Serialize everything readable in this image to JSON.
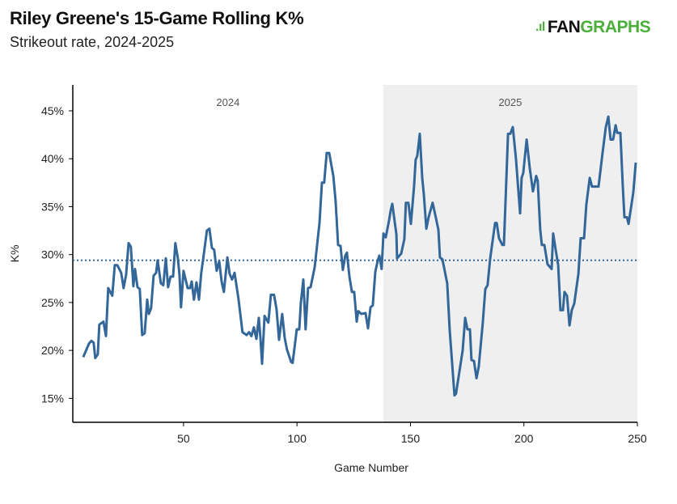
{
  "chart_data": {
    "type": "line",
    "title": "Riley Greene's 15-Game Rolling K%",
    "subtitle": "Strikeout rate, 2024-2025",
    "xlabel": "Game Number",
    "ylabel": "K%",
    "xlim": [
      1.2,
      250
    ],
    "ylim": [
      12.5,
      47.7
    ],
    "xticks": [
      50,
      100,
      150,
      200,
      250
    ],
    "yticks": [
      15,
      20,
      25,
      30,
      35,
      40,
      45
    ],
    "ytick_labels": [
      "15%",
      "20%",
      "25%",
      "30%",
      "35%",
      "40%",
      "45%"
    ],
    "grid": false,
    "season_regions": [
      {
        "label": "2024",
        "start": 1.2,
        "end": 138,
        "shaded": false
      },
      {
        "label": "2025",
        "start": 138,
        "end": 250,
        "shaded": true
      }
    ],
    "reference_line": {
      "value": 29.4,
      "style": "dotted"
    },
    "series": [
      {
        "name": "15-Game Rolling K%",
        "color": "#336699",
        "points": [
          [
            5.8,
            19.3
          ],
          [
            8.3,
            20.7
          ],
          [
            9.4,
            21.0
          ],
          [
            10.4,
            20.8
          ],
          [
            11.1,
            19.2
          ],
          [
            12.2,
            19.6
          ],
          [
            12.9,
            22.7
          ],
          [
            14.7,
            23.0
          ],
          [
            15.8,
            21.5
          ],
          [
            16.8,
            26.5
          ],
          [
            18.6,
            25.7
          ],
          [
            19.7,
            28.9
          ],
          [
            20.8,
            28.9
          ],
          [
            22.5,
            28.1
          ],
          [
            23.6,
            26.5
          ],
          [
            24.7,
            27.9
          ],
          [
            25.8,
            31.2
          ],
          [
            26.8,
            30.8
          ],
          [
            27.9,
            26.7
          ],
          [
            28.6,
            28.5
          ],
          [
            29.7,
            26.6
          ],
          [
            30.7,
            26.4
          ],
          [
            31.8,
            21.6
          ],
          [
            32.9,
            21.8
          ],
          [
            34.0,
            25.3
          ],
          [
            34.7,
            23.8
          ],
          [
            35.7,
            24.4
          ],
          [
            36.8,
            27.8
          ],
          [
            37.9,
            28.1
          ],
          [
            38.6,
            29.4
          ],
          [
            40.0,
            27.0
          ],
          [
            41.1,
            26.8
          ],
          [
            42.2,
            29.6
          ],
          [
            43.2,
            26.6
          ],
          [
            44.3,
            27.7
          ],
          [
            45.4,
            27.7
          ],
          [
            46.4,
            31.2
          ],
          [
            47.5,
            29.6
          ],
          [
            48.2,
            27.9
          ],
          [
            48.9,
            24.5
          ],
          [
            50.0,
            28.3
          ],
          [
            50.7,
            27.6
          ],
          [
            51.8,
            26.5
          ],
          [
            52.9,
            26.5
          ],
          [
            53.6,
            27.2
          ],
          [
            54.6,
            25.3
          ],
          [
            55.7,
            27.1
          ],
          [
            56.8,
            25.3
          ],
          [
            57.8,
            28.1
          ],
          [
            58.6,
            29.4
          ],
          [
            60.3,
            32.5
          ],
          [
            61.4,
            32.7
          ],
          [
            62.5,
            30.7
          ],
          [
            63.5,
            30.5
          ],
          [
            64.6,
            28.3
          ],
          [
            65.7,
            29.3
          ],
          [
            66.8,
            27.2
          ],
          [
            67.8,
            26.1
          ],
          [
            69.3,
            29.7
          ],
          [
            70.3,
            28.0
          ],
          [
            71.4,
            27.4
          ],
          [
            72.5,
            28.1
          ],
          [
            74.2,
            25.4
          ],
          [
            76.0,
            21.9
          ],
          [
            77.8,
            21.6
          ],
          [
            78.9,
            21.9
          ],
          [
            79.9,
            21.5
          ],
          [
            81.0,
            22.4
          ],
          [
            82.1,
            21.2
          ],
          [
            83.2,
            23.4
          ],
          [
            83.9,
            21.3
          ],
          [
            84.6,
            18.6
          ],
          [
            85.7,
            23.6
          ],
          [
            87.4,
            22.9
          ],
          [
            88.5,
            25.8
          ],
          [
            89.9,
            25.8
          ],
          [
            91.0,
            24.3
          ],
          [
            92.1,
            21.1
          ],
          [
            93.5,
            23.8
          ],
          [
            94.6,
            21.3
          ],
          [
            95.6,
            20.1
          ],
          [
            97.4,
            18.8
          ],
          [
            98.1,
            18.7
          ],
          [
            99.9,
            22.2
          ],
          [
            101.0,
            22.2
          ],
          [
            101.7,
            24.9
          ],
          [
            102.8,
            27.4
          ],
          [
            103.8,
            22.2
          ],
          [
            104.9,
            26.5
          ],
          [
            106.0,
            26.6
          ],
          [
            107.8,
            28.7
          ],
          [
            109.9,
            33.3
          ],
          [
            111.0,
            37.5
          ],
          [
            112.0,
            37.5
          ],
          [
            113.1,
            40.6
          ],
          [
            114.2,
            40.6
          ],
          [
            116.0,
            38.2
          ],
          [
            117.0,
            35.6
          ],
          [
            118.1,
            31.0
          ],
          [
            119.2,
            30.9
          ],
          [
            120.2,
            28.4
          ],
          [
            121.3,
            29.9
          ],
          [
            122.0,
            30.2
          ],
          [
            123.1,
            27.7
          ],
          [
            124.2,
            26.1
          ],
          [
            125.2,
            26.1
          ],
          [
            126.3,
            23.0
          ],
          [
            127.0,
            24.1
          ],
          [
            128.4,
            23.8
          ],
          [
            130.2,
            23.9
          ],
          [
            131.3,
            22.3
          ],
          [
            132.4,
            24.5
          ],
          [
            133.4,
            24.7
          ],
          [
            134.5,
            28.2
          ],
          [
            135.6,
            29.4
          ],
          [
            136.3,
            29.9
          ],
          [
            137.3,
            28.5
          ],
          [
            138.1,
            32.2
          ],
          [
            139.1,
            31.8
          ],
          [
            140.6,
            33.6
          ],
          [
            141.3,
            34.6
          ],
          [
            142.0,
            35.3
          ],
          [
            143.8,
            32.1
          ],
          [
            144.1,
            29.6
          ],
          [
            145.9,
            30.1
          ],
          [
            147.3,
            31.6
          ],
          [
            148.0,
            35.4
          ],
          [
            149.1,
            35.4
          ],
          [
            150.2,
            33.2
          ],
          [
            151.6,
            37.1
          ],
          [
            152.3,
            39.9
          ],
          [
            153.0,
            40.3
          ],
          [
            154.1,
            42.6
          ],
          [
            155.2,
            38.0
          ],
          [
            155.9,
            36.3
          ],
          [
            157.0,
            32.7
          ],
          [
            158.0,
            33.9
          ],
          [
            159.8,
            35.4
          ],
          [
            160.9,
            34.2
          ],
          [
            162.3,
            32.6
          ],
          [
            163.0,
            29.7
          ],
          [
            164.1,
            29.5
          ],
          [
            166.2,
            27.0
          ],
          [
            167.3,
            22.1
          ],
          [
            169.4,
            15.3
          ],
          [
            170.1,
            15.5
          ],
          [
            173.0,
            20.0
          ],
          [
            174.1,
            23.4
          ],
          [
            175.1,
            22.2
          ],
          [
            176.2,
            22.2
          ],
          [
            176.9,
            19.0
          ],
          [
            178.0,
            18.9
          ],
          [
            179.1,
            17.1
          ],
          [
            180.1,
            18.3
          ],
          [
            181.9,
            22.9
          ],
          [
            183.0,
            26.4
          ],
          [
            184.0,
            26.8
          ],
          [
            185.1,
            29.5
          ],
          [
            187.3,
            33.3
          ],
          [
            188.0,
            33.3
          ],
          [
            189.0,
            31.7
          ],
          [
            190.5,
            31.0
          ],
          [
            191.2,
            31.0
          ],
          [
            193.0,
            42.6
          ],
          [
            194.0,
            42.6
          ],
          [
            195.1,
            43.3
          ],
          [
            196.5,
            40.0
          ],
          [
            198.3,
            34.3
          ],
          [
            199.0,
            38.0
          ],
          [
            199.7,
            38.5
          ],
          [
            201.2,
            42.0
          ],
          [
            202.6,
            39.0
          ],
          [
            204.0,
            36.6
          ],
          [
            205.4,
            38.2
          ],
          [
            206.1,
            37.7
          ],
          [
            207.2,
            32.6
          ],
          [
            207.9,
            31.0
          ],
          [
            209.0,
            31.0
          ],
          [
            210.4,
            29.0
          ],
          [
            212.2,
            28.5
          ],
          [
            212.9,
            32.2
          ],
          [
            214.0,
            30.5
          ],
          [
            215.1,
            28.9
          ],
          [
            216.1,
            24.2
          ],
          [
            217.2,
            24.2
          ],
          [
            217.9,
            26.1
          ],
          [
            219.0,
            25.7
          ],
          [
            220.1,
            22.6
          ],
          [
            221.1,
            24.2
          ],
          [
            222.2,
            24.9
          ],
          [
            224.0,
            28.0
          ],
          [
            225.0,
            31.7
          ],
          [
            226.5,
            31.7
          ],
          [
            227.5,
            35.2
          ],
          [
            229.0,
            38.0
          ],
          [
            230.0,
            37.1
          ],
          [
            232.9,
            37.1
          ],
          [
            234.7,
            40.7
          ],
          [
            236.1,
            43.3
          ],
          [
            237.2,
            44.4
          ],
          [
            238.2,
            42.0
          ],
          [
            239.3,
            42.0
          ],
          [
            240.4,
            43.5
          ],
          [
            241.1,
            42.7
          ],
          [
            242.5,
            42.7
          ],
          [
            243.6,
            37.1
          ],
          [
            244.3,
            33.9
          ],
          [
            245.4,
            33.9
          ],
          [
            246.1,
            33.2
          ],
          [
            248.2,
            36.5
          ],
          [
            249.3,
            39.6
          ]
        ]
      }
    ]
  },
  "logo": {
    "bars": ".ıl",
    "part1": "FAN",
    "part2": "GRAPHS",
    "color": "#4cae3b"
  }
}
